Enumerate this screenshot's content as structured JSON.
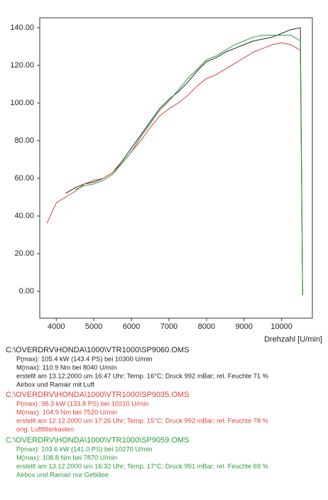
{
  "chart_data": {
    "type": "line",
    "x_label": "Drehzahl [U/min]",
    "x": [
      3750,
      4000,
      4250,
      4500,
      4750,
      5000,
      5250,
      5500,
      5750,
      6000,
      6250,
      6500,
      6750,
      7000,
      7250,
      7500,
      7750,
      8000,
      8250,
      8500,
      8750,
      9000,
      9250,
      9500,
      9750,
      10000,
      10250,
      10500,
      10560
    ],
    "xlim": [
      3560,
      10820
    ],
    "xticks": [
      4000,
      5000,
      6000,
      7000,
      8000,
      9000,
      10000
    ],
    "ylim": [
      -14.3,
      145.3
    ],
    "yticks": [
      {
        "value": 0,
        "label": "0.00"
      },
      {
        "value": 20,
        "label": "20.00"
      },
      {
        "value": 40,
        "label": "40.00"
      },
      {
        "value": 60,
        "label": "60.00"
      },
      {
        "value": 80,
        "label": "80.00"
      },
      {
        "value": 100,
        "label": "100.00"
      },
      {
        "value": 120,
        "label": "120.00"
      },
      {
        "value": 140,
        "label": "140.00"
      }
    ],
    "series": [
      {
        "name": "C:\\OVERDRV\\HONDA\\1000\\VTR1000\\SP9060.OMS",
        "color": "#222222",
        "details": [
          "P(max): 105.4 kW (143.4 PS) bei 10300 U/min",
          "M(max): 110.9 Nm bei 8040 U/min",
          "erstellt am 13.12.2000 um 16:47 Uhr; Temp. 16°C; Druck 992 mBar; rel. Feuchte 71 %",
          "Airbox und Ramair mit Luft"
        ],
        "values": [
          null,
          null,
          52,
          55,
          57,
          58,
          60,
          63,
          69,
          76,
          83,
          90,
          97,
          102,
          106,
          111,
          117,
          122,
          124,
          127,
          129,
          131,
          133,
          134,
          135,
          137,
          139,
          140,
          -2
        ]
      },
      {
        "name": "C:\\OVERDRV\\HONDA\\1000\\VTR1000\\SP9035.OMS",
        "color": "#e0403a",
        "details": [
          "P(max): 98.3 kW (133.8 PS) bei 10210 U/min",
          "M(max): 104.9 Nm bei 7520 U/min",
          "erstellt am 12.12.2000 um 17:26 Uhr; Temp. 15°C; Druck 992 mBar; rel. Feuchte 78 %",
          "orig. Luftfilterkasten"
        ],
        "values": [
          36,
          47,
          50,
          53,
          57,
          59,
          60,
          63,
          68,
          74,
          80,
          87,
          93,
          97,
          100,
          104,
          109,
          113,
          115,
          118,
          121,
          124,
          127,
          129,
          131,
          132,
          131,
          128,
          -2
        ]
      },
      {
        "name": "C:\\OVERDRV\\HONDA\\1000\\VTR1000\\SP9059.OMS",
        "color": "#2a9a3a",
        "details": [
          "P(max): 103.6 kW (141.0 PS) bei 10270 U/min",
          "M(max): 108.8 Nm bei 7870 U/min",
          "erstellt am 13.12.2000 um 16:32 Uhr; Temp. 17°C; Druck 991 mBar; rel. Feuchte 69 %",
          "Airbox und Ramair nur Gebläse"
        ],
        "values": [
          null,
          null,
          null,
          54,
          56,
          57,
          59,
          62,
          68,
          74,
          82,
          89,
          96,
          101,
          107,
          113,
          118,
          123,
          125,
          128,
          131,
          133,
          135,
          136,
          136,
          136,
          136,
          133,
          -2
        ]
      }
    ]
  }
}
